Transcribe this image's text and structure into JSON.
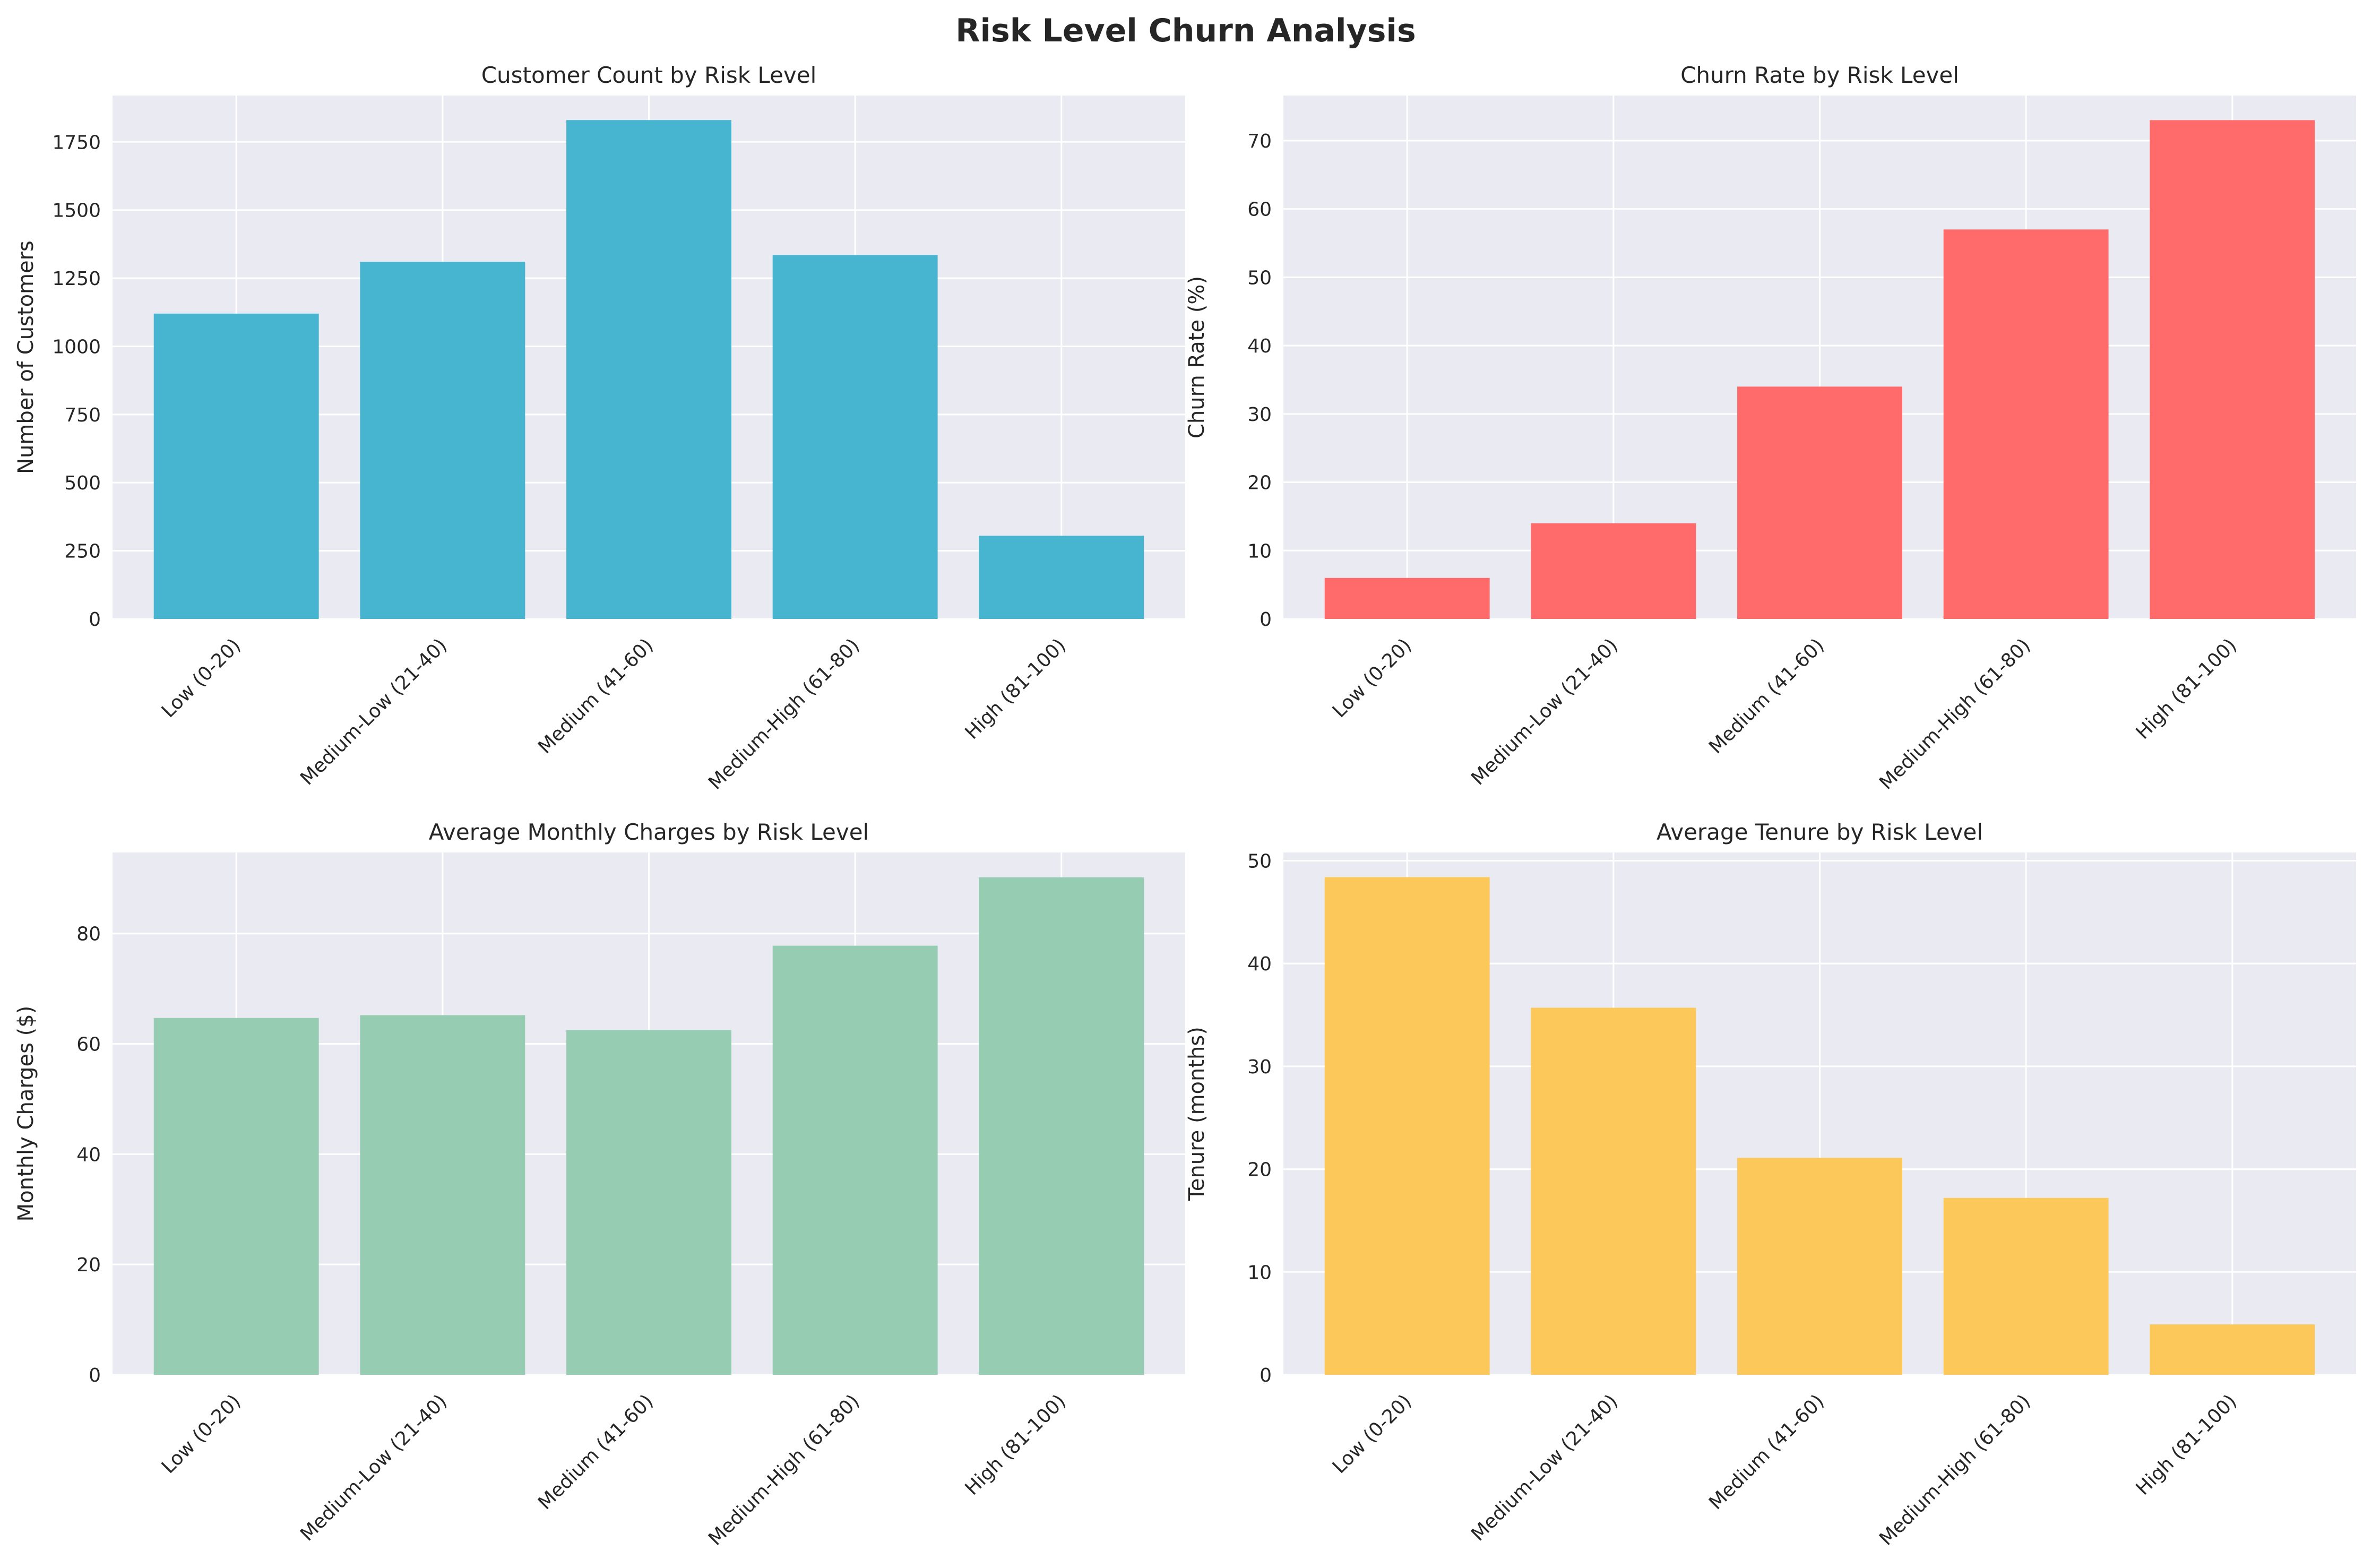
{
  "figure": {
    "title": "Risk Level Churn Analysis"
  },
  "chart_data": [
    {
      "type": "bar",
      "title": "Customer Count by Risk Level",
      "xlabel": "",
      "ylabel": "Number of Customers",
      "categories": [
        "Low (0-20)",
        "Medium-Low (21-40)",
        "Medium (41-60)",
        "Medium-High (61-80)",
        "High (81-100)"
      ],
      "values": [
        1120,
        1310,
        1830,
        1335,
        305
      ],
      "ylim": [
        0,
        1920
      ],
      "yticks": [
        0,
        250,
        500,
        750,
        1000,
        1250,
        1500,
        1750
      ],
      "color": "#47b5d0",
      "grid": true
    },
    {
      "type": "bar",
      "title": "Churn Rate by Risk Level",
      "xlabel": "",
      "ylabel": "Churn Rate (%)",
      "categories": [
        "Low (0-20)",
        "Medium-Low (21-40)",
        "Medium (41-60)",
        "Medium-High (61-80)",
        "High (81-100)"
      ],
      "values": [
        6,
        14,
        34,
        57,
        73
      ],
      "ylim": [
        0,
        76.6
      ],
      "yticks": [
        0,
        10,
        20,
        30,
        40,
        50,
        60,
        70
      ],
      "color": "#ff6b6b",
      "grid": true
    },
    {
      "type": "bar",
      "title": "Average Monthly Charges by Risk Level",
      "xlabel": "",
      "ylabel": "Monthly Charges ($)",
      "categories": [
        "Low (0-20)",
        "Medium-Low (21-40)",
        "Medium (41-60)",
        "Medium-High (61-80)",
        "High (81-100)"
      ],
      "values": [
        64.7,
        65.2,
        62.5,
        77.8,
        90.2
      ],
      "ylim": [
        0,
        94.7
      ],
      "yticks": [
        0,
        20,
        40,
        60,
        80
      ],
      "color": "#96cdb2",
      "grid": true
    },
    {
      "type": "bar",
      "title": "Average Tenure by Risk Level",
      "xlabel": "",
      "ylabel": "Tenure (months)",
      "categories": [
        "Low (0-20)",
        "Medium-Low (21-40)",
        "Medium (41-60)",
        "Medium-High (61-80)",
        "High (81-100)"
      ],
      "values": [
        48.4,
        35.7,
        21.1,
        17.2,
        4.9
      ],
      "ylim": [
        0,
        50.8
      ],
      "yticks": [
        0,
        10,
        20,
        30,
        40,
        50
      ],
      "color": "#fdc85a",
      "grid": true
    }
  ]
}
